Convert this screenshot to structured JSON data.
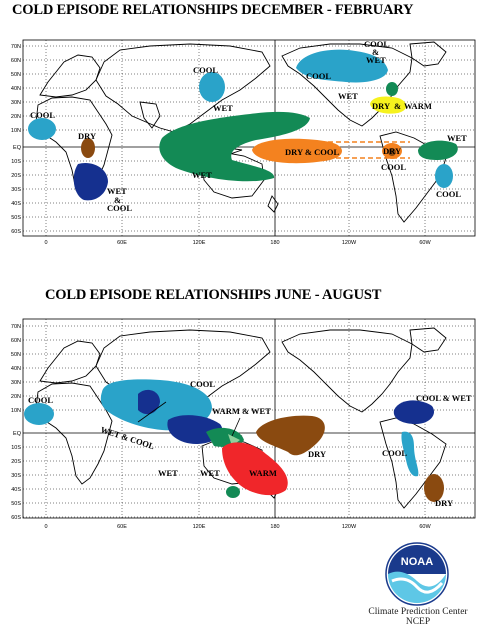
{
  "map1": {
    "title": "COLD EPISODE RELATIONSHIPS   DECEMBER - FEBRUARY",
    "lat_labels": [
      "70N",
      "60N",
      "50N",
      "40N",
      "30N",
      "20N",
      "10N",
      "EQ",
      "10S",
      "20S",
      "30S",
      "40S",
      "50S",
      "60S"
    ],
    "lon_labels": [
      "0",
      "60E",
      "120E",
      "180",
      "120W",
      "60W"
    ],
    "regions": {
      "cool_pnw": "COOL",
      "cool_wet_canada": [
        "COOL",
        "&",
        "WET"
      ],
      "cool_nw_pacific": "COOL",
      "wet_se_us": "WET",
      "dry_warm_gulf": [
        "DRY",
        "&",
        "WARM"
      ],
      "cool_west_africa": "COOL",
      "dry_east_africa": "DRY",
      "wet_cool_se_africa": [
        "WET",
        "&",
        "COOL"
      ],
      "wet_maritime": "WET",
      "wet_australia": "WET",
      "dry_cool_pacific": "DRY & COOL",
      "dry_equatorial_sa": "DRY",
      "cool_equatorial_sa": "COOL",
      "wet_north_brazil": "WET",
      "cool_southeast_sa": "COOL"
    }
  },
  "map2": {
    "title": "COLD EPISODE RELATIONSHIPS     JUNE - AUGUST",
    "lat_labels": [
      "70N",
      "60N",
      "50N",
      "40N",
      "30N",
      "20N",
      "10N",
      "EQ",
      "10S",
      "20S",
      "30S",
      "40S",
      "50S",
      "60S"
    ],
    "lon_labels": [
      "0",
      "60E",
      "120E",
      "180",
      "120W",
      "60W"
    ],
    "regions": {
      "cool_west_africa": "COOL",
      "wet_cool_india": "WET & COOL",
      "cool_se_asia": "COOL",
      "warm_wet_pacific": "WARM & WET",
      "wet_indonesia": "WET",
      "wet_north_australia": "WET",
      "warm_east_australia": "WARM",
      "dry_central_pacific": "DRY",
      "cool_wet_central_america": "COOL & WET",
      "cool_andes": "COOL",
      "dry_southern_sa": "DRY"
    }
  },
  "logo": {
    "text": "NOAA"
  },
  "credit": {
    "line1": "Climate Prediction Center",
    "line2": "NCEP"
  },
  "colors": {
    "wet_green": "#138a55",
    "cool_cyan": "#2aa3c9",
    "dark_blue": "#15308f",
    "dry_brown": "#8a4a10",
    "dry_cool_orange": "#f4821f",
    "warm_yellow": "#f6f21e",
    "warm_red": "#f0262a",
    "wet_light_green": "#8fd19c"
  }
}
